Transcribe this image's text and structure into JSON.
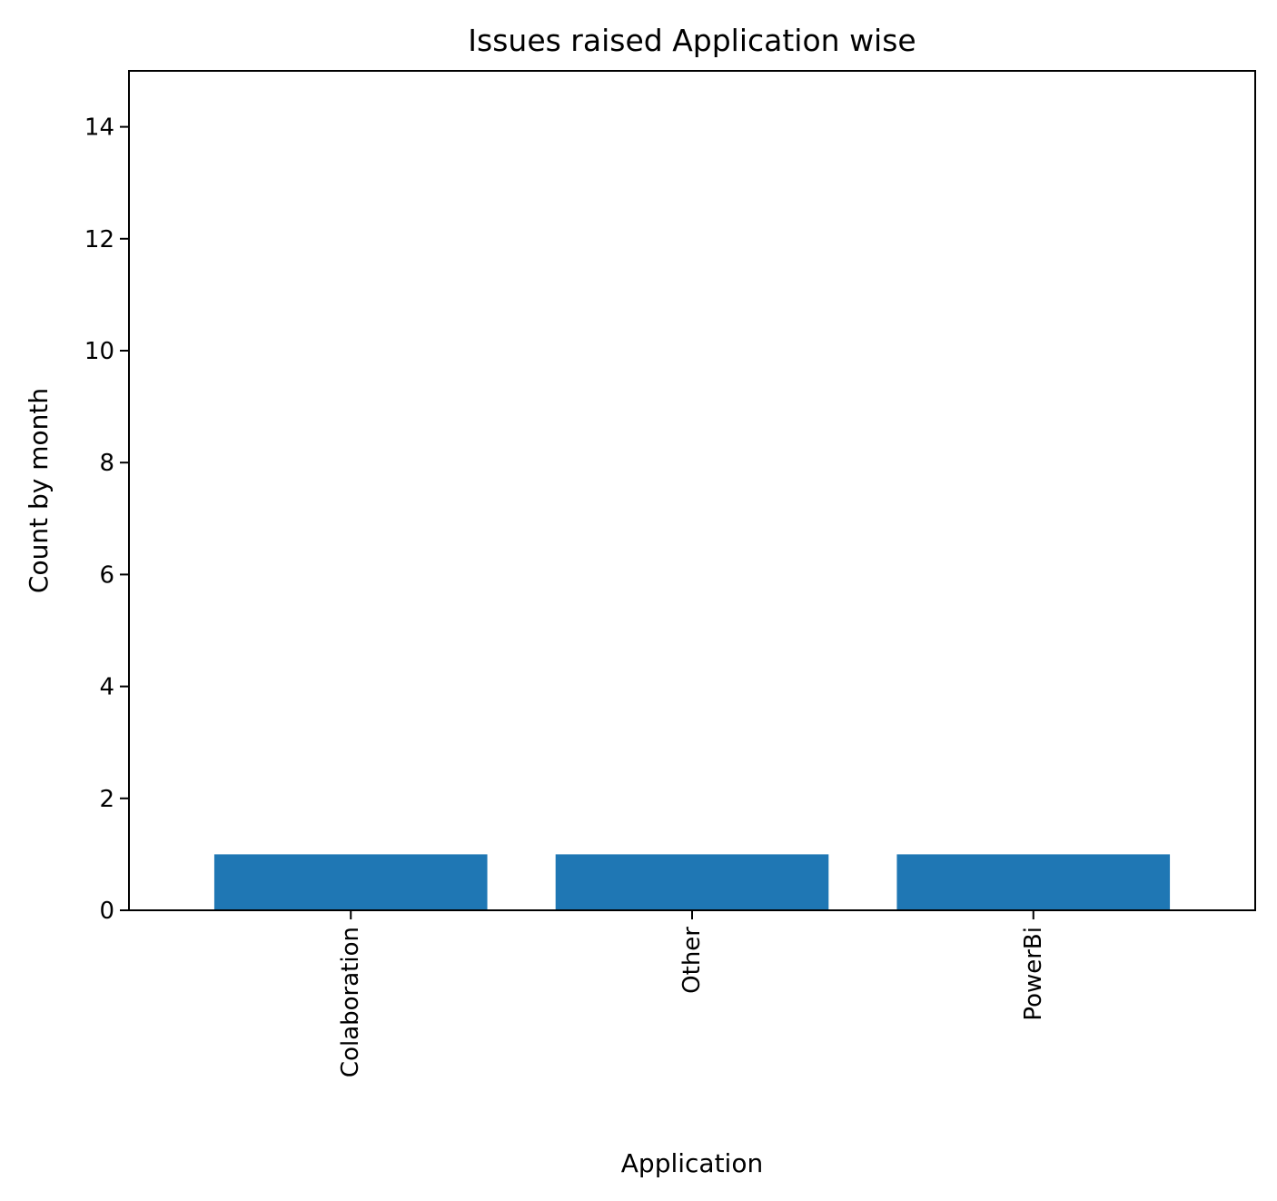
{
  "chart_data": {
    "type": "bar",
    "title": "Issues raised Application wise",
    "xlabel": "Application",
    "ylabel": "Count by month",
    "categories": [
      "Colaboration",
      "Other",
      "PowerBi"
    ],
    "values": [
      1,
      1,
      1
    ],
    "ylim": [
      0,
      15
    ],
    "yticks": [
      0,
      2,
      4,
      6,
      8,
      10,
      12,
      14
    ],
    "xtick_rotation": "vertical",
    "grid": false,
    "legend": "none",
    "bar_color": "#1f77b4"
  }
}
